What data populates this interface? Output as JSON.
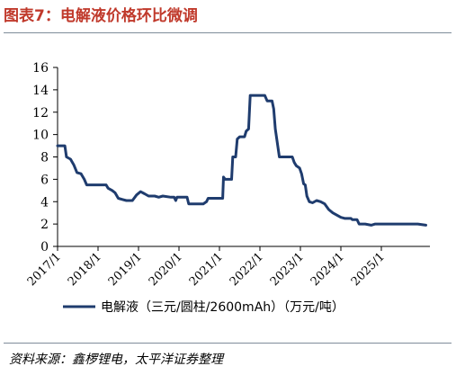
{
  "header": {
    "title": "图表7：电解液价格环比微调"
  },
  "source": {
    "text": "资料来源：鑫椤锂电，太平洋证券整理"
  },
  "colors": {
    "line": "#1f3c6e",
    "title": "#c0392b"
  },
  "chart_data": {
    "type": "line",
    "ylim": [
      0,
      16
    ],
    "yticks": [
      0,
      2,
      4,
      6,
      8,
      10,
      12,
      14,
      16
    ],
    "xlim": [
      2017.0,
      2026.2
    ],
    "xticks": [
      {
        "value": 2017.0,
        "label": "2017/1"
      },
      {
        "value": 2018.0,
        "label": "2018/1"
      },
      {
        "value": 2019.0,
        "label": "2019/1"
      },
      {
        "value": 2020.0,
        "label": "2020/1"
      },
      {
        "value": 2021.0,
        "label": "2021/1"
      },
      {
        "value": 2022.0,
        "label": "2022/1"
      },
      {
        "value": 2023.0,
        "label": "2023/1"
      },
      {
        "value": 2024.0,
        "label": "2024/1"
      },
      {
        "value": 2025.0,
        "label": "2025/1"
      }
    ],
    "grid": false,
    "legend": "bottom",
    "series": [
      {
        "name": "电解液（三元/圆柱/2600mAh）（万元/吨）",
        "points": [
          [
            2017.0,
            9.0
          ],
          [
            2017.18,
            9.0
          ],
          [
            2017.22,
            8.0
          ],
          [
            2017.32,
            7.8
          ],
          [
            2017.4,
            7.3
          ],
          [
            2017.48,
            6.6
          ],
          [
            2017.58,
            6.5
          ],
          [
            2017.66,
            6.0
          ],
          [
            2017.72,
            5.5
          ],
          [
            2018.0,
            5.5
          ],
          [
            2018.2,
            5.5
          ],
          [
            2018.25,
            5.2
          ],
          [
            2018.35,
            5.0
          ],
          [
            2018.42,
            4.8
          ],
          [
            2018.5,
            4.3
          ],
          [
            2018.6,
            4.2
          ],
          [
            2018.7,
            4.1
          ],
          [
            2018.85,
            4.1
          ],
          [
            2018.95,
            4.6
          ],
          [
            2019.05,
            4.9
          ],
          [
            2019.15,
            4.7
          ],
          [
            2019.25,
            4.5
          ],
          [
            2019.4,
            4.5
          ],
          [
            2019.5,
            4.4
          ],
          [
            2019.6,
            4.5
          ],
          [
            2019.8,
            4.4
          ],
          [
            2019.88,
            4.4
          ],
          [
            2019.92,
            4.1
          ],
          [
            2019.95,
            4.4
          ],
          [
            2020.2,
            4.4
          ],
          [
            2020.24,
            3.8
          ],
          [
            2020.6,
            3.8
          ],
          [
            2020.68,
            4.0
          ],
          [
            2020.72,
            4.3
          ],
          [
            2021.0,
            4.3
          ],
          [
            2021.08,
            4.3
          ],
          [
            2021.1,
            6.2
          ],
          [
            2021.14,
            6.0
          ],
          [
            2021.3,
            6.0
          ],
          [
            2021.33,
            8.0
          ],
          [
            2021.4,
            8.0
          ],
          [
            2021.44,
            9.6
          ],
          [
            2021.5,
            9.8
          ],
          [
            2021.62,
            9.8
          ],
          [
            2021.66,
            10.3
          ],
          [
            2021.72,
            10.5
          ],
          [
            2021.76,
            13.5
          ],
          [
            2022.05,
            13.5
          ],
          [
            2022.12,
            13.5
          ],
          [
            2022.18,
            13.0
          ],
          [
            2022.3,
            13.0
          ],
          [
            2022.34,
            12.3
          ],
          [
            2022.38,
            10.5
          ],
          [
            2022.42,
            9.5
          ],
          [
            2022.48,
            8.0
          ],
          [
            2022.8,
            8.0
          ],
          [
            2022.85,
            7.5
          ],
          [
            2022.9,
            7.2
          ],
          [
            2022.98,
            7.0
          ],
          [
            2023.03,
            6.5
          ],
          [
            2023.08,
            5.6
          ],
          [
            2023.12,
            5.5
          ],
          [
            2023.16,
            4.5
          ],
          [
            2023.22,
            4.0
          ],
          [
            2023.3,
            3.9
          ],
          [
            2023.4,
            4.1
          ],
          [
            2023.5,
            4.0
          ],
          [
            2023.6,
            3.8
          ],
          [
            2023.7,
            3.3
          ],
          [
            2023.8,
            3.0
          ],
          [
            2023.9,
            2.8
          ],
          [
            2024.0,
            2.6
          ],
          [
            2024.1,
            2.5
          ],
          [
            2024.25,
            2.5
          ],
          [
            2024.28,
            2.4
          ],
          [
            2024.4,
            2.4
          ],
          [
            2024.45,
            2.0
          ],
          [
            2024.6,
            2.0
          ],
          [
            2024.75,
            1.9
          ],
          [
            2024.85,
            2.0
          ],
          [
            2025.0,
            2.0
          ],
          [
            2025.5,
            2.0
          ],
          [
            2025.7,
            2.0
          ],
          [
            2025.9,
            2.0
          ],
          [
            2026.1,
            1.9
          ]
        ]
      }
    ]
  }
}
